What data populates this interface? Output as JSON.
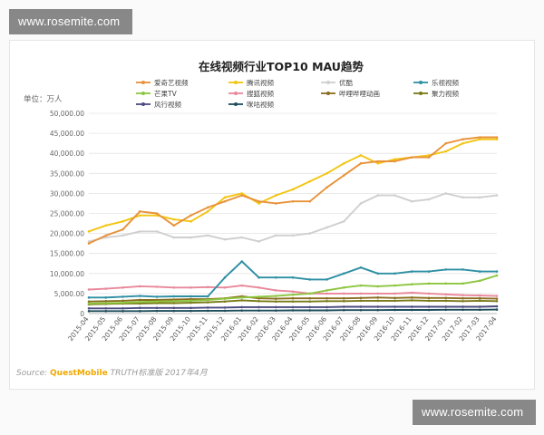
{
  "watermarks": {
    "top": "www.rosemite.com",
    "bottom": "www.rosemite.com"
  },
  "source": {
    "label": "Source:",
    "brand": "QuestMobile",
    "rest": "TRUTH标准版 2017年4月"
  },
  "chart_data": {
    "type": "line",
    "title": "在线视频行业TOP10 MAU趋势",
    "ylabel": "单位：万人",
    "ylim": [
      0,
      50000
    ],
    "yticks": [
      "0",
      "5,000.00",
      "10,000.00",
      "15,000.00",
      "20,000.00",
      "25,000.00",
      "30,000.00",
      "35,000.00",
      "40,000.00",
      "45,000.00",
      "50,000.00"
    ],
    "categories": [
      "2015-04",
      "2015-05",
      "2015-06",
      "2015-07",
      "2015-08",
      "2015-09",
      "2015-10",
      "2015-11",
      "2015-12",
      "2016-01",
      "2016-02",
      "2016-03",
      "2016-04",
      "2016-05",
      "2016-06",
      "2016-07",
      "2016-08",
      "2016-09",
      "2016-10",
      "2016-11",
      "2016-12",
      "2017-01",
      "2017-02",
      "2017-03",
      "2017-04"
    ],
    "series": [
      {
        "name": "爱奇艺视频",
        "color": "#e8923a",
        "values": [
          17500,
          19500,
          21000,
          25500,
          25000,
          22000,
          24500,
          26500,
          28000,
          29500,
          28000,
          27500,
          28000,
          28000,
          31500,
          34500,
          37500,
          38000,
          38000,
          39000,
          39000,
          42500,
          43500,
          44000,
          44000
        ]
      },
      {
        "name": "腾讯视频",
        "color": "#f2c511",
        "values": [
          20500,
          22000,
          23000,
          24500,
          24500,
          23500,
          23000,
          25500,
          29000,
          30000,
          27500,
          29500,
          31000,
          33000,
          35000,
          37500,
          39500,
          37500,
          38500,
          39000,
          39500,
          40500,
          42500,
          43500,
          43500
        ]
      },
      {
        "name": "优酷",
        "color": "#cfcfcf",
        "values": [
          18000,
          19000,
          19500,
          20500,
          20500,
          19000,
          19000,
          19500,
          18500,
          19000,
          18000,
          19500,
          19500,
          20000,
          21500,
          23000,
          27500,
          29500,
          29500,
          28000,
          28500,
          30000,
          29000,
          29000,
          29500
        ]
      },
      {
        "name": "乐视视频",
        "color": "#2e8fa4",
        "values": [
          4000,
          4000,
          4200,
          4400,
          4200,
          4300,
          4300,
          4300,
          9000,
          13000,
          9000,
          9000,
          9000,
          8500,
          8500,
          10000,
          11500,
          10000,
          10000,
          10500,
          10500,
          11000,
          11000,
          10500,
          10500
        ]
      },
      {
        "name": "芒果TV",
        "color": "#8cc63f",
        "values": [
          2500,
          2600,
          2700,
          2900,
          3000,
          3100,
          3200,
          3400,
          3700,
          4000,
          4200,
          4400,
          4700,
          5000,
          5800,
          6500,
          7000,
          6800,
          7000,
          7300,
          7500,
          7500,
          7500,
          8200,
          9500
        ]
      },
      {
        "name": "搜狐视频",
        "color": "#e8889a",
        "values": [
          6000,
          6200,
          6500,
          6800,
          6700,
          6500,
          6500,
          6600,
          6500,
          7000,
          6500,
          5800,
          5500,
          5000,
          5000,
          5000,
          5000,
          5000,
          5000,
          5200,
          5000,
          4800,
          4600,
          4500,
          4400
        ]
      },
      {
        "name": "哔哩哔哩动画",
        "color": "#8a6d1f",
        "values": [
          3000,
          3100,
          3200,
          3400,
          3400,
          3500,
          3600,
          3600,
          3800,
          4300,
          3800,
          3700,
          3800,
          3800,
          3800,
          3800,
          3900,
          4000,
          3900,
          4000,
          3900,
          3900,
          3800,
          3800,
          3700
        ]
      },
      {
        "name": "聚力视频",
        "color": "#7a7a1a",
        "values": [
          2300,
          2400,
          2500,
          2500,
          2600,
          2600,
          2700,
          2800,
          3000,
          3300,
          3100,
          3000,
          3000,
          3000,
          3100,
          3100,
          3200,
          3200,
          3200,
          3300,
          3200,
          3200,
          3100,
          3200,
          3100
        ]
      },
      {
        "name": "风行视频",
        "color": "#4a4a80",
        "values": [
          1300,
          1300,
          1300,
          1400,
          1400,
          1400,
          1400,
          1500,
          1500,
          1600,
          1600,
          1600,
          1600,
          1600,
          1600,
          1700,
          1700,
          1700,
          1700,
          1700,
          1700,
          1700,
          1700,
          1700,
          1800
        ]
      },
      {
        "name": "咪咕视频",
        "color": "#1e4d5c",
        "values": [
          600,
          600,
          600,
          600,
          650,
          650,
          650,
          700,
          700,
          750,
          750,
          750,
          800,
          800,
          800,
          850,
          850,
          850,
          900,
          900,
          900,
          950,
          950,
          950,
          1000
        ]
      }
    ]
  }
}
